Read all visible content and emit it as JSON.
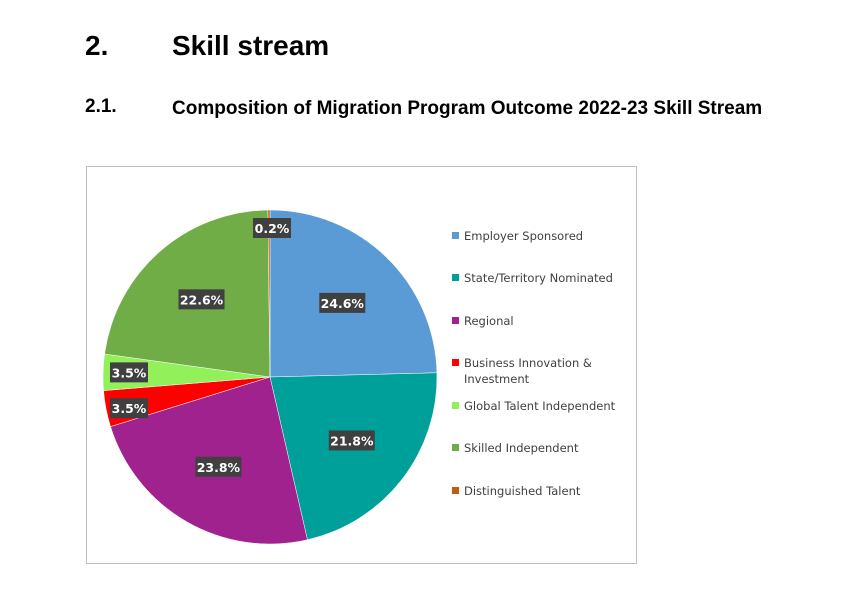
{
  "heading": {
    "number": "2.",
    "title": "Skill stream"
  },
  "subheading": {
    "number": "2.1.",
    "title": "Composition of Migration Program Outcome 2022-23 Skill Stream"
  },
  "chart_data": {
    "type": "pie",
    "title": "",
    "legend_position": "right",
    "slices": [
      {
        "label": "Employer Sponsored",
        "value": 24.6,
        "display": "24.6%",
        "color": "#5B9BD5"
      },
      {
        "label": "State/Territory Nominated",
        "value": 21.8,
        "display": "21.8%",
        "color": "#00A09A"
      },
      {
        "label": "Regional",
        "value": 23.8,
        "display": "23.8%",
        "color": "#A0228F"
      },
      {
        "label": "Business Innovation & Investment",
        "value": 3.5,
        "display": "3.5%",
        "color": "#FF0000"
      },
      {
        "label": "Global Talent Independent",
        "value": 3.5,
        "display": "3.5%",
        "color": "#92F05A"
      },
      {
        "label": "Skilled Independent",
        "value": 22.6,
        "display": "22.6%",
        "color": "#70AD47"
      },
      {
        "label": "Distinguished Talent",
        "value": 0.2,
        "display": "0.2%",
        "color": "#C55A11"
      }
    ]
  }
}
